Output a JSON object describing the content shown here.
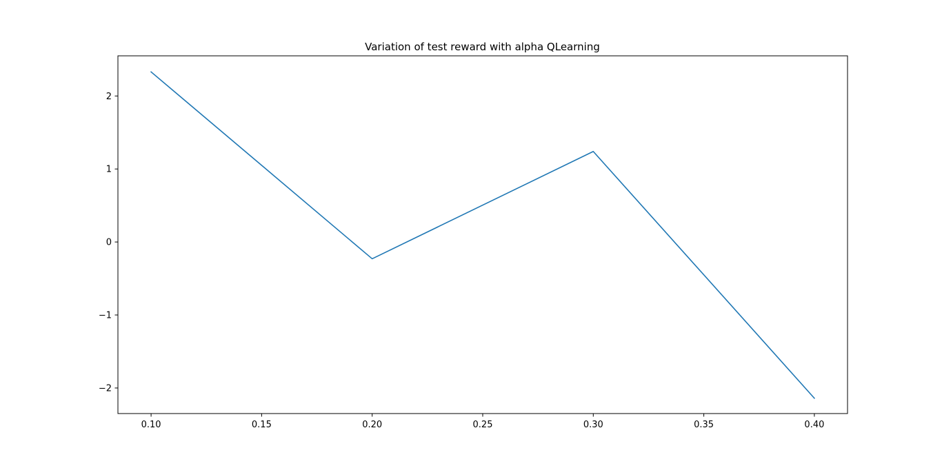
{
  "chart_data": {
    "type": "line",
    "title": "Variation of test reward with alpha QLearning",
    "xlabel": "",
    "ylabel": "",
    "x": [
      0.1,
      0.2,
      0.3,
      0.4
    ],
    "series": [
      {
        "values": [
          2.33,
          -0.23,
          1.24,
          -2.14
        ],
        "color": "#1f77b4"
      }
    ],
    "xlim": [
      0.085,
      0.415
    ],
    "ylim": [
      -2.35,
      2.55
    ],
    "xticks": [
      0.1,
      0.15,
      0.2,
      0.25,
      0.3,
      0.35,
      0.4
    ],
    "xtick_labels": [
      "0.10",
      "0.15",
      "0.20",
      "0.25",
      "0.30",
      "0.35",
      "0.40"
    ],
    "yticks": [
      -2,
      -1,
      0,
      1,
      2
    ],
    "ytick_labels": [
      "−2",
      "−1",
      "0",
      "1",
      "2"
    ],
    "grid": false,
    "legend": false
  }
}
